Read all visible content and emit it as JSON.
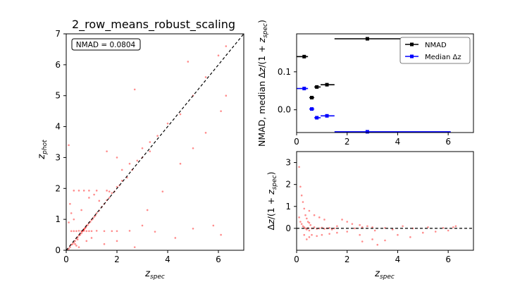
{
  "chart_data": [
    {
      "type": "scatter",
      "title": "2_row_means_robust_scaling",
      "xlabel": "z_spec",
      "ylabel": "z_phot",
      "xlim": [
        0,
        7
      ],
      "ylim": [
        0,
        7
      ],
      "xticks": [
        "0",
        "2",
        "4",
        "6"
      ],
      "yticks": [
        "0",
        "1",
        "2",
        "3",
        "4",
        "5",
        "6",
        "7"
      ],
      "annotation": "NMAD = 0.0804",
      "reference_line": "y = x (dashed)",
      "point_color": "#ff0000",
      "sample_points_description_free": true,
      "series": [
        {
          "values": [
            [
              0.05,
              0.02
            ],
            [
              0.1,
              0.05
            ],
            [
              0.15,
              0.1
            ],
            [
              0.2,
              0.18
            ],
            [
              0.25,
              0.2
            ],
            [
              0.3,
              0.25
            ],
            [
              0.35,
              0.3
            ],
            [
              0.4,
              0.38
            ],
            [
              0.45,
              0.42
            ],
            [
              0.5,
              0.48
            ],
            [
              0.55,
              0.5
            ],
            [
              0.6,
              0.55
            ],
            [
              0.62,
              0.6
            ],
            [
              0.65,
              0.63
            ],
            [
              0.68,
              0.65
            ],
            [
              0.7,
              0.68
            ],
            [
              0.72,
              0.7
            ],
            [
              0.75,
              0.72
            ],
            [
              0.78,
              0.75
            ],
            [
              0.8,
              0.8
            ],
            [
              0.85,
              0.82
            ],
            [
              0.9,
              0.88
            ],
            [
              0.95,
              0.92
            ],
            [
              1.0,
              0.98
            ],
            [
              1.05,
              1.02
            ],
            [
              1.1,
              1.08
            ],
            [
              1.15,
              1.12
            ],
            [
              1.2,
              1.2
            ],
            [
              1.3,
              1.28
            ],
            [
              1.4,
              1.4
            ],
            [
              1.5,
              1.5
            ],
            [
              1.6,
              1.62
            ],
            [
              1.7,
              1.7
            ],
            [
              1.8,
              1.85
            ],
            [
              1.9,
              1.9
            ],
            [
              2.0,
              2.05
            ],
            [
              2.1,
              2.1
            ],
            [
              2.2,
              2.25
            ],
            [
              2.4,
              2.35
            ],
            [
              2.6,
              2.6
            ],
            [
              2.8,
              2.9
            ],
            [
              3.0,
              3.0
            ],
            [
              3.3,
              3.2
            ],
            [
              3.6,
              3.7
            ],
            [
              4.0,
              4.1
            ],
            [
              4.5,
              4.4
            ],
            [
              5.0,
              5.0
            ],
            [
              5.5,
              5.6
            ],
            [
              6.0,
              6.3
            ],
            [
              6.3,
              6.6
            ],
            [
              0.3,
              0.62
            ],
            [
              0.4,
              0.62
            ],
            [
              0.5,
              0.63
            ],
            [
              0.8,
              0.62
            ],
            [
              1.0,
              0.62
            ],
            [
              1.2,
              0.63
            ],
            [
              1.5,
              0.62
            ],
            [
              2.0,
              0.62
            ],
            [
              2.5,
              0.63
            ],
            [
              0.2,
              0.62
            ],
            [
              0.6,
              0.62
            ],
            [
              0.7,
              0.63
            ],
            [
              0.9,
              0.62
            ],
            [
              1.8,
              0.62
            ],
            [
              0.3,
              1.93
            ],
            [
              0.5,
              1.93
            ],
            [
              0.7,
              1.93
            ],
            [
              0.9,
              1.93
            ],
            [
              1.2,
              1.93
            ],
            [
              1.6,
              1.93
            ],
            [
              0.1,
              0.9
            ],
            [
              0.2,
              1.2
            ],
            [
              0.15,
              1.5
            ],
            [
              0.1,
              3.4
            ],
            [
              0.3,
              1.0
            ],
            [
              0.6,
              1.3
            ],
            [
              0.4,
              0.15
            ],
            [
              0.5,
              0.1
            ],
            [
              0.8,
              0.3
            ],
            [
              1.0,
              0.4
            ],
            [
              1.5,
              0.2
            ],
            [
              2.0,
              0.3
            ],
            [
              3.0,
              0.8
            ],
            [
              3.5,
              0.6
            ],
            [
              4.3,
              0.4
            ],
            [
              5.0,
              0.7
            ],
            [
              5.8,
              0.8
            ],
            [
              6.1,
              0.5
            ],
            [
              2.7,
              0.1
            ],
            [
              3.2,
              1.3
            ],
            [
              3.8,
              1.9
            ],
            [
              4.5,
              2.8
            ],
            [
              5.0,
              3.3
            ],
            [
              5.5,
              3.8
            ],
            [
              6.1,
              4.5
            ],
            [
              6.3,
              5.0
            ],
            [
              4.8,
              6.1
            ],
            [
              2.7,
              5.2
            ],
            [
              1.6,
              3.2
            ],
            [
              2.0,
              3.0
            ],
            [
              0.9,
              1.7
            ],
            [
              1.1,
              1.8
            ],
            [
              1.3,
              1.6
            ],
            [
              1.7,
              1.9
            ],
            [
              2.2,
              2.6
            ],
            [
              2.5,
              2.8
            ],
            [
              3.3,
              3.5
            ],
            [
              3.0,
              3.3
            ],
            [
              0.35,
              0.2
            ],
            [
              0.45,
              0.35
            ]
          ]
        }
      ]
    },
    {
      "type": "line",
      "xlabel": "z_spec",
      "ylabel": "NMAD, median Δz/(1 + z_spec)",
      "xlim": [
        0,
        7
      ],
      "ylim": [
        -0.06,
        0.2
      ],
      "xticks": [
        "0",
        "2",
        "4",
        "6"
      ],
      "yticks": [
        "0.0",
        "0.1"
      ],
      "legend_position": "upper-right",
      "series": [
        {
          "name": "NMAD",
          "color": "#000000",
          "points": [
            {
              "x": 0.3,
              "y": 0.14,
              "xerr": [
                0.0,
                0.45
              ]
            },
            {
              "x": 0.6,
              "y": 0.032,
              "xerr": [
                0.5,
                0.7
              ]
            },
            {
              "x": 0.8,
              "y": 0.06,
              "xerr": [
                0.7,
                0.95
              ]
            },
            {
              "x": 1.2,
              "y": 0.066,
              "xerr": [
                0.95,
                1.5
              ]
            },
            {
              "x": 2.8,
              "y": 0.187,
              "xerr": [
                1.5,
                6.1
              ]
            }
          ]
        },
        {
          "name": "Median Δz",
          "color": "#0000ff",
          "points": [
            {
              "x": 0.3,
              "y": 0.056,
              "xerr": [
                0.0,
                0.45
              ]
            },
            {
              "x": 0.6,
              "y": 0.002,
              "xerr": [
                0.5,
                0.7
              ]
            },
            {
              "x": 0.8,
              "y": -0.021,
              "xerr": [
                0.7,
                0.95
              ]
            },
            {
              "x": 1.2,
              "y": -0.016,
              "xerr": [
                0.95,
                1.5
              ]
            },
            {
              "x": 2.8,
              "y": -0.058,
              "xerr": [
                1.5,
                6.1
              ]
            }
          ]
        }
      ]
    },
    {
      "type": "scatter",
      "xlabel": "z_spec",
      "ylabel": "Δz/(1 + z_spec)",
      "xlim": [
        0,
        7
      ],
      "ylim": [
        -1.0,
        3.5
      ],
      "xticks": [
        "0",
        "2",
        "4",
        "6"
      ],
      "yticks": [
        "0",
        "1",
        "2",
        "3"
      ],
      "reference_line": "y = 0 (dashed)",
      "point_color": "#ff0000",
      "series": [
        {
          "values": [
            [
              0.1,
              2.8
            ],
            [
              0.15,
              1.9
            ],
            [
              0.2,
              1.5
            ],
            [
              0.25,
              1.2
            ],
            [
              0.3,
              0.9
            ],
            [
              0.35,
              0.6
            ],
            [
              0.4,
              0.45
            ],
            [
              0.45,
              0.3
            ],
            [
              0.5,
              0.25
            ],
            [
              0.55,
              0.15
            ],
            [
              0.1,
              0.5
            ],
            [
              0.15,
              0.3
            ],
            [
              0.2,
              0.2
            ],
            [
              0.25,
              0.1
            ],
            [
              0.3,
              0.05
            ],
            [
              0.35,
              0.0
            ],
            [
              0.4,
              -0.05
            ],
            [
              0.45,
              0.02
            ],
            [
              0.5,
              -0.1
            ],
            [
              0.6,
              0.0
            ],
            [
              0.7,
              0.05
            ],
            [
              0.8,
              -0.02
            ],
            [
              0.9,
              0.0
            ],
            [
              1.0,
              0.03
            ],
            [
              1.1,
              -0.02
            ],
            [
              1.2,
              0.0
            ],
            [
              1.3,
              0.02
            ],
            [
              1.4,
              -0.05
            ],
            [
              1.5,
              0.0
            ],
            [
              1.6,
              0.1
            ],
            [
              0.3,
              -0.3
            ],
            [
              0.4,
              -0.5
            ],
            [
              0.5,
              -0.4
            ],
            [
              0.6,
              -0.3
            ],
            [
              0.8,
              -0.35
            ],
            [
              1.0,
              -0.3
            ],
            [
              1.3,
              -0.25
            ],
            [
              1.6,
              -0.2
            ],
            [
              2.0,
              -0.15
            ],
            [
              2.5,
              -0.3
            ],
            [
              1.8,
              0.4
            ],
            [
              2.0,
              0.3
            ],
            [
              2.2,
              0.2
            ],
            [
              2.5,
              0.15
            ],
            [
              2.8,
              0.1
            ],
            [
              3.0,
              0.05
            ],
            [
              0.5,
              0.8
            ],
            [
              0.7,
              0.6
            ],
            [
              0.9,
              0.5
            ],
            [
              1.1,
              0.4
            ],
            [
              2.6,
              -0.6
            ],
            [
              3.0,
              -0.5
            ],
            [
              3.5,
              -0.55
            ],
            [
              3.2,
              -0.75
            ],
            [
              4.0,
              -0.3
            ],
            [
              4.5,
              -0.4
            ],
            [
              5.0,
              -0.2
            ],
            [
              5.5,
              -0.15
            ],
            [
              6.0,
              -0.1
            ],
            [
              6.2,
              0.05
            ],
            [
              3.5,
              0.02
            ],
            [
              3.8,
              -0.05
            ],
            [
              4.2,
              0.1
            ],
            [
              4.6,
              0.0
            ],
            [
              5.2,
              0.05
            ],
            [
              5.8,
              0.02
            ],
            [
              6.3,
              0.1
            ],
            [
              2.3,
              0.0
            ],
            [
              2.6,
              0.05
            ],
            [
              3.1,
              -0.1
            ]
          ]
        }
      ]
    }
  ]
}
